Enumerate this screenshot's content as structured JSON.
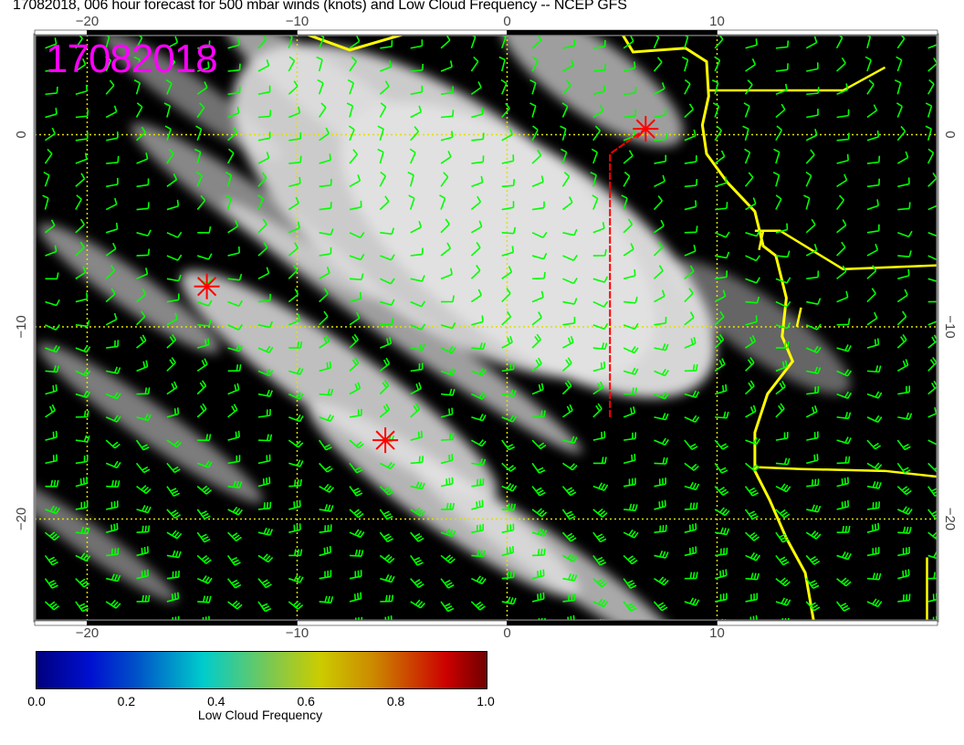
{
  "title": "17082018, 006 hour forecast for 500 mbar winds (knots) and Low Cloud Frequency -- NCEP GFS",
  "date_stamp": "17082018",
  "map": {
    "lon_range": [
      -22.5,
      20.5
    ],
    "lat_range": [
      -25.3,
      5.2
    ],
    "lon_ticks": [
      "−20",
      "−10",
      "0",
      "10"
    ],
    "lat_ticks": [
      "0",
      "−10",
      "−20"
    ],
    "lon_tick_values": [
      -20,
      -10,
      0,
      10
    ],
    "lat_tick_values": [
      0,
      -10,
      -20
    ],
    "markers": [
      {
        "type": "red-star",
        "lon": -14.3,
        "lat": -7.9
      },
      {
        "type": "red-star",
        "lon": -5.8,
        "lat": -15.9
      },
      {
        "type": "red-star",
        "lon": 6.6,
        "lat": 0.3
      }
    ],
    "track": [
      [
        4.9,
        -14.7
      ],
      [
        4.9,
        -1.0
      ],
      [
        6.6,
        0.3
      ]
    ],
    "colors": {
      "background": "#000000",
      "coastline": "#ffff00",
      "wind_barbs": "#00ff00",
      "markers": "#ff0000",
      "grid": "#e0e000",
      "stamp": "#ff00ff"
    }
  },
  "colorbar": {
    "title": "Low Cloud Frequency",
    "labels": [
      "0.0",
      "0.2",
      "0.4",
      "0.6",
      "0.8",
      "1.0"
    ],
    "range": [
      0,
      1
    ]
  }
}
